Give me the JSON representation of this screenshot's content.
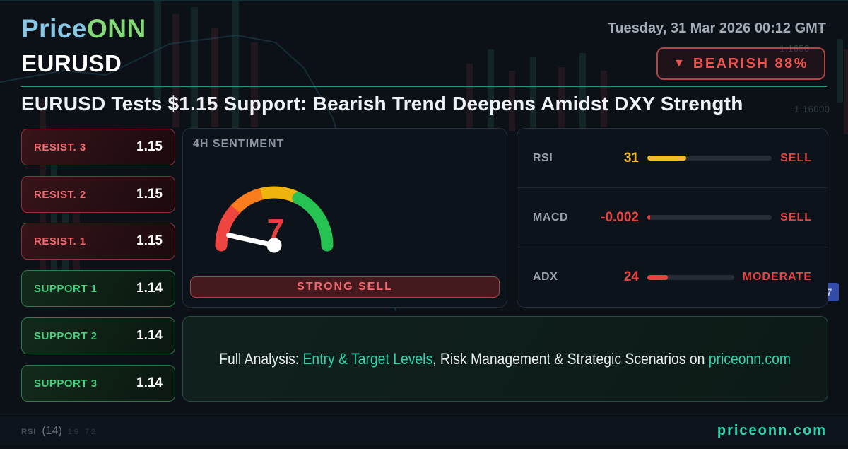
{
  "header": {
    "logo_part1": "Price",
    "logo_part2": "ONN",
    "datetime": "Tuesday, 31 Mar 2026 00:12 GMT",
    "symbol": "EURUSD",
    "badge": {
      "icon": "▼",
      "label": "BEARISH 88%"
    },
    "headline": "EURUSD Tests $1.15 Support: Bearish Trend Deepens Amidst DXY Strength"
  },
  "levels": [
    {
      "label": "RESIST. 3",
      "value": "1.15",
      "type": "resistance"
    },
    {
      "label": "RESIST. 2",
      "value": "1.15",
      "type": "resistance"
    },
    {
      "label": "RESIST. 1",
      "value": "1.15",
      "type": "resistance"
    },
    {
      "label": "SUPPORT 1",
      "value": "1.14",
      "type": "support"
    },
    {
      "label": "SUPPORT 2",
      "value": "1.14",
      "type": "support"
    },
    {
      "label": "SUPPORT 3",
      "value": "1.14",
      "type": "support"
    }
  ],
  "sentiment": {
    "title": "4H SENTIMENT",
    "value": "7",
    "scale_max": "100",
    "signal": "STRONG SELL",
    "value_color": "#e5403d",
    "arc_colors": {
      "red": "#ee4540",
      "orange": "#f97d1c",
      "amber": "#eeb30c",
      "green": "#27c352"
    }
  },
  "indicators": {
    "rows": [
      {
        "label": "RSI",
        "value": "31",
        "value_color": "#f3ba2f",
        "fill_pct": "31%",
        "fill_color": "#f3ba2f",
        "signal": "SELL"
      },
      {
        "label": "MACD",
        "value": "-0.002",
        "value_color": "#e8423f",
        "fill_pct": "2%",
        "fill_color": "#e8423f",
        "signal": "SELL"
      },
      {
        "label": "ADX",
        "value": "24",
        "value_color": "#e8423f",
        "fill_pct": "24%",
        "fill_color": "#e8423f",
        "signal": "MODERATE"
      }
    ]
  },
  "banner": {
    "prefix": "Full Analysis: ",
    "highlight": "Entry & Target Levels",
    "middle": ", Risk Management & Strategic Scenarios on ",
    "site": "priceonn.com"
  },
  "footer": {
    "site": "priceonn.com",
    "bg_rsi_label": "RSI",
    "bg_rsi_period": "(14)",
    "bg_rsi_levels": "19 72"
  },
  "background": {
    "price_label_1": "1.1650",
    "price_label_2": "1.16000",
    "axis_badge": "7"
  },
  "colors": {
    "accent_teal": "#2fd3ae",
    "bearish_red": "#ef5350",
    "support_green": "#45d07d",
    "resist_red": "#f2696f"
  }
}
